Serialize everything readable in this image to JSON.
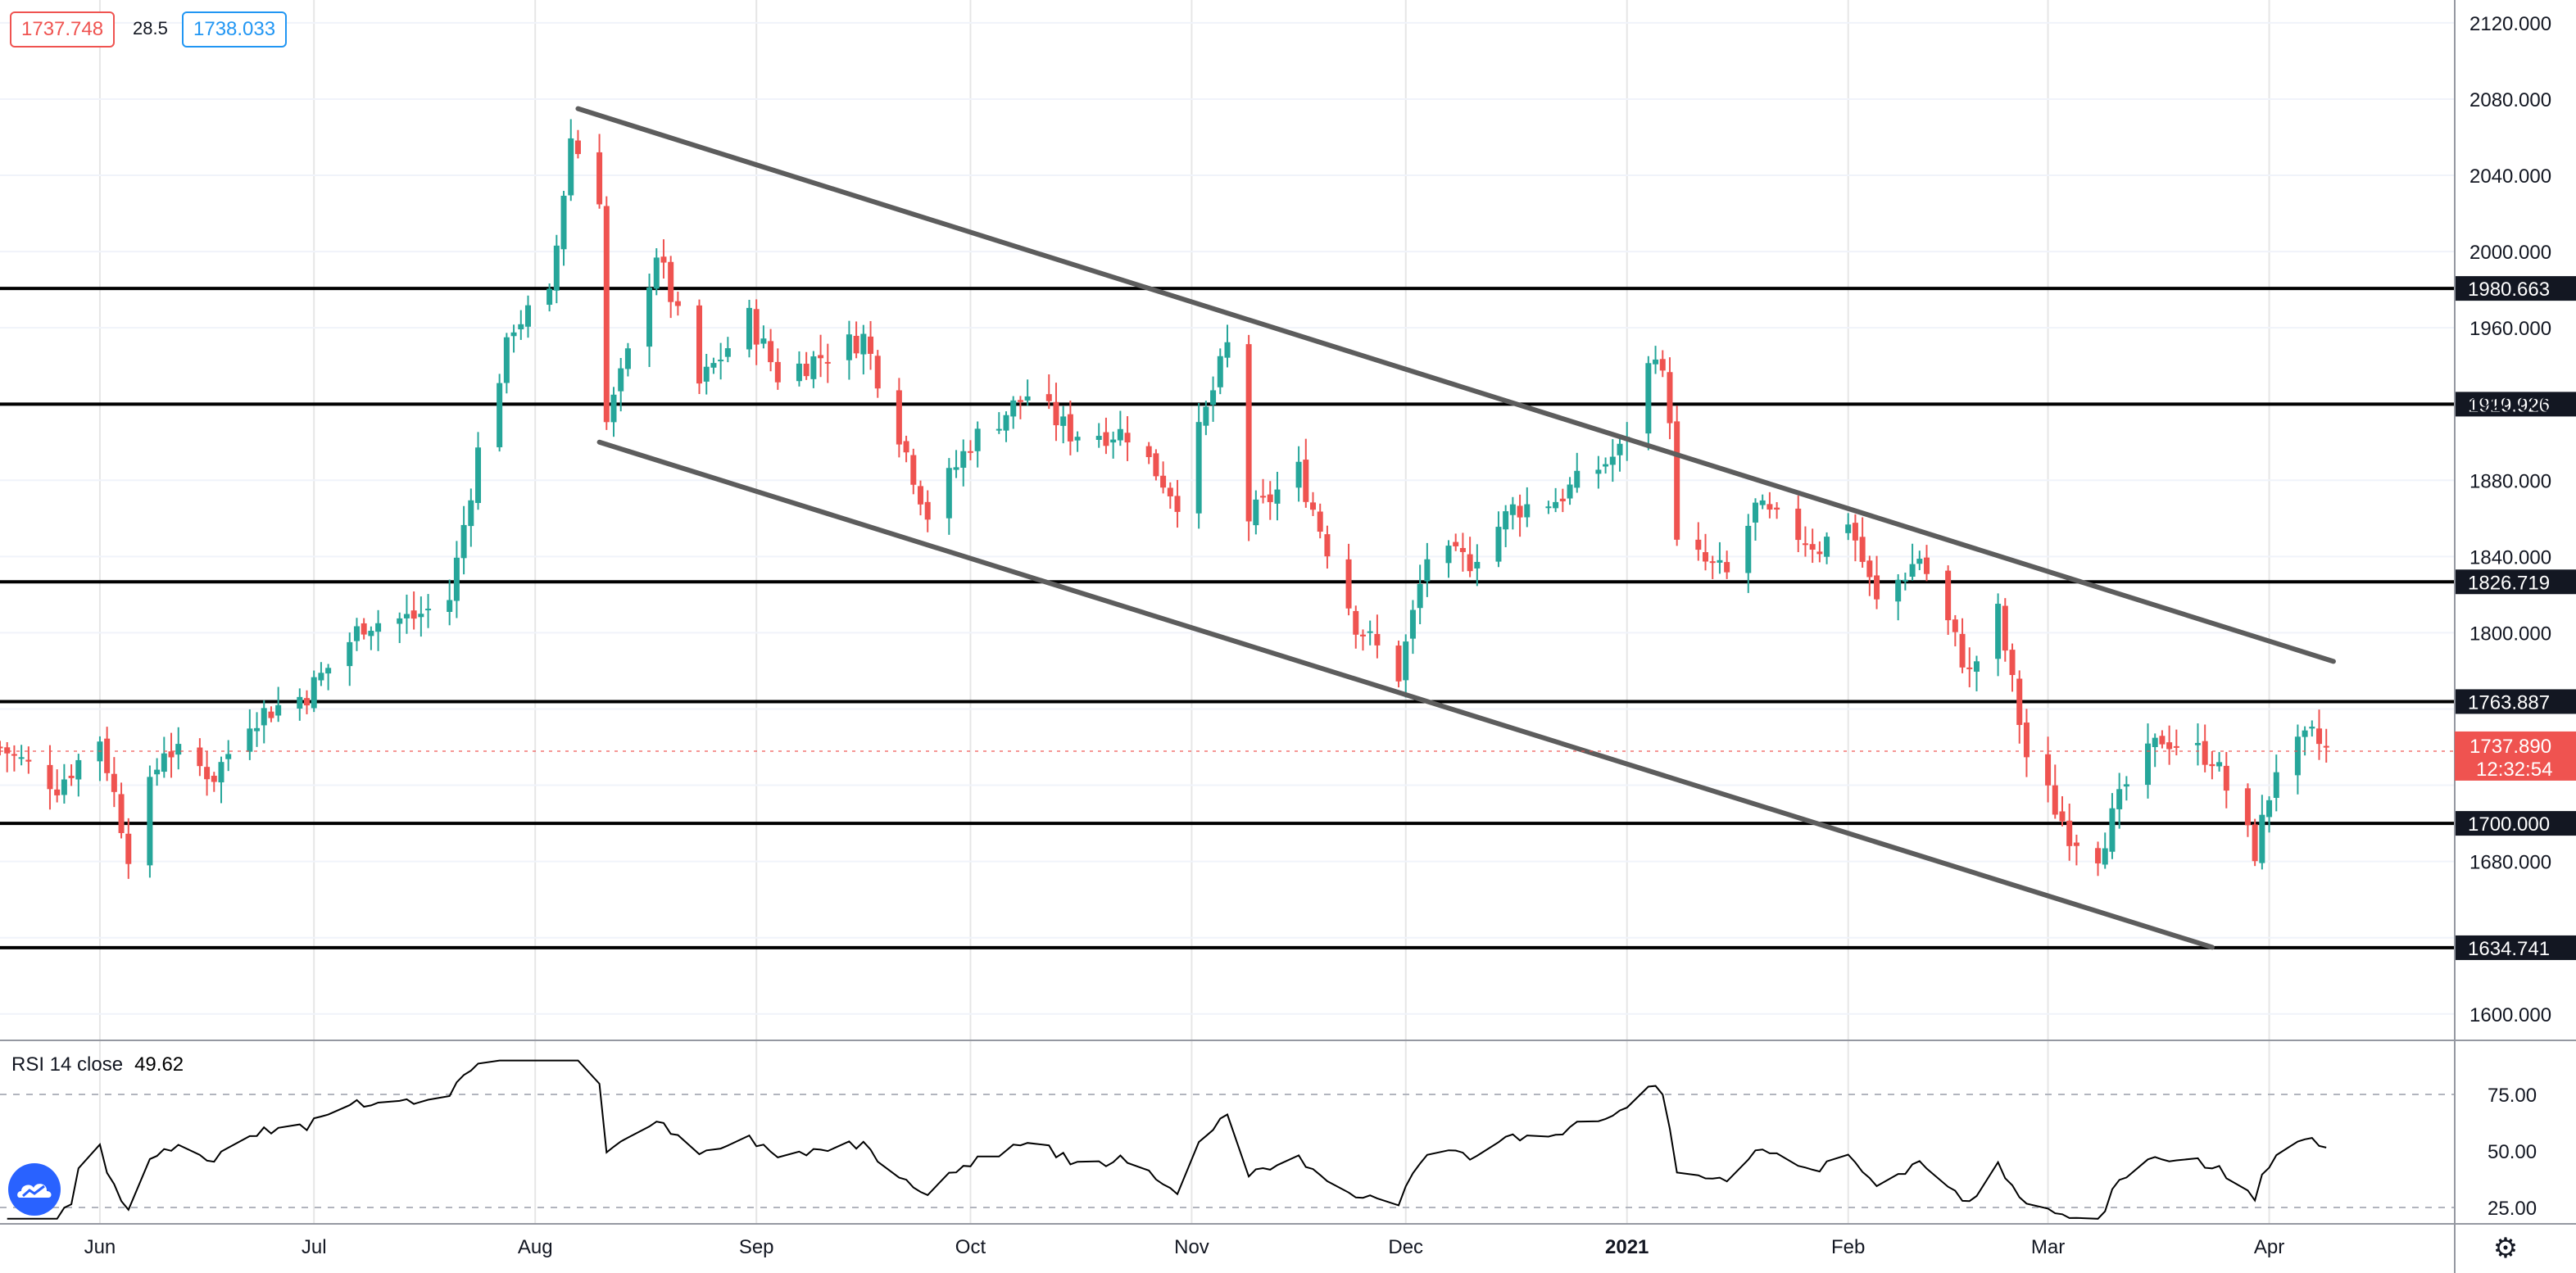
{
  "header": {
    "bid": "1737.748",
    "spread": "28.5",
    "ask": "1738.033"
  },
  "rsi": {
    "label": "RSI 14 close",
    "value": "49.62",
    "levels": [
      75,
      50,
      25
    ],
    "ticks": [
      "75.00",
      "50.00",
      "25.00"
    ]
  },
  "colors": {
    "up": "#26a69a",
    "down": "#ef5350",
    "grid": "#e6e6e6",
    "level_line": "#000000",
    "channel": "#5d5d5d",
    "bid": "#ef5350",
    "ask": "#2196f3"
  },
  "icons": {
    "logo": "tradingview-cloud-icon",
    "settings": "gear-icon"
  },
  "chart_data": {
    "type": "candlestick",
    "ylim": [
      1587,
      2132
    ],
    "y_ticks": [
      2120,
      2080,
      2040,
      2000,
      1960,
      1920,
      1880,
      1840,
      1800,
      1760,
      1720,
      1680,
      1640,
      1600
    ],
    "y_tick_labels": [
      "2120.000",
      "2080.000",
      "2040.000",
      "2000.000",
      "1960.000",
      "1920.000",
      "1880.000",
      "1840.000",
      "1800.000",
      "1760.000",
      "1720.000",
      "1680.000",
      "1640.000",
      "1600.000"
    ],
    "x_labels": [
      {
        "label": "Jun",
        "x": "2020-06-01"
      },
      {
        "label": "Jul",
        "x": "2020-07-01"
      },
      {
        "label": "Aug",
        "x": "2020-08-01"
      },
      {
        "label": "Sep",
        "x": "2020-09-01"
      },
      {
        "label": "Oct",
        "x": "2020-10-01"
      },
      {
        "label": "Nov",
        "x": "2020-11-01"
      },
      {
        "label": "Dec",
        "x": "2020-12-01"
      },
      {
        "label": "2021",
        "x": "2021-01-01"
      },
      {
        "label": "Feb",
        "x": "2021-02-01"
      },
      {
        "label": "Mar",
        "x": "2021-03-01"
      },
      {
        "label": "Apr",
        "x": "2021-04-01"
      }
    ],
    "x_range": [
      "2020-05-18",
      "2021-04-27"
    ],
    "horizontal_levels": [
      {
        "label": "1980.663",
        "value": 1980.663
      },
      {
        "label": "1919.926",
        "value": 1919.926
      },
      {
        "label": "1826.719",
        "value": 1826.719
      },
      {
        "label": "1763.887",
        "value": 1763.887
      },
      {
        "label": "1700.000",
        "value": 1700.0
      },
      {
        "label": "1634.741",
        "value": 1634.741
      }
    ],
    "channel_lines": [
      {
        "from": {
          "x": "2020-08-07",
          "y": 2075
        },
        "to": {
          "x": "2021-04-10",
          "y": 1785
        }
      },
      {
        "from": {
          "x": "2020-08-10",
          "y": 1900
        },
        "to": {
          "x": "2021-03-24",
          "y": 1635
        }
      }
    ],
    "current_price": {
      "label": "1737.890",
      "value": 1737.89,
      "countdown": "12:32:54"
    },
    "anchors": [
      [
        "2020-05-18",
        1740
      ],
      [
        "2020-05-26",
        1720
      ],
      [
        "2020-06-01",
        1745
      ],
      [
        "2020-06-05",
        1685
      ],
      [
        "2020-06-10",
        1740
      ],
      [
        "2020-06-17",
        1725
      ],
      [
        "2020-06-22",
        1755
      ],
      [
        "2020-06-30",
        1768
      ],
      [
        "2020-07-08",
        1805
      ],
      [
        "2020-07-15",
        1808
      ],
      [
        "2020-07-20",
        1818
      ],
      [
        "2020-07-24",
        1895
      ],
      [
        "2020-07-29",
        1962
      ],
      [
        "2020-08-03",
        1975
      ],
      [
        "2020-08-06",
        2060
      ],
      [
        "2020-08-10",
        2030
      ],
      [
        "2020-08-11",
        1910
      ],
      [
        "2020-08-14",
        1945
      ],
      [
        "2020-08-18",
        2000
      ],
      [
        "2020-08-24",
        1930
      ],
      [
        "2020-08-31",
        1965
      ],
      [
        "2020-09-04",
        1935
      ],
      [
        "2020-09-10",
        1945
      ],
      [
        "2020-09-16",
        1955
      ],
      [
        "2020-09-21",
        1905
      ],
      [
        "2020-09-25",
        1862
      ],
      [
        "2020-10-01",
        1900
      ],
      [
        "2020-10-09",
        1925
      ],
      [
        "2020-10-15",
        1905
      ],
      [
        "2020-10-23",
        1905
      ],
      [
        "2020-10-30",
        1870
      ],
      [
        "2020-11-06",
        1950
      ],
      [
        "2020-11-09",
        1860
      ],
      [
        "2020-11-16",
        1885
      ],
      [
        "2020-11-24",
        1805
      ],
      [
        "2020-11-30",
        1778
      ],
      [
        "2020-12-04",
        1840
      ],
      [
        "2020-12-10",
        1838
      ],
      [
        "2020-12-16",
        1865
      ],
      [
        "2020-12-22",
        1870
      ],
      [
        "2020-12-31",
        1895
      ],
      [
        "2021-01-05",
        1950
      ],
      [
        "2021-01-07",
        1915
      ],
      [
        "2021-01-08",
        1845
      ],
      [
        "2021-01-15",
        1830
      ],
      [
        "2021-01-19",
        1865
      ],
      [
        "2021-01-28",
        1845
      ],
      [
        "2021-02-01",
        1860
      ],
      [
        "2021-02-05",
        1815
      ],
      [
        "2021-02-11",
        1840
      ],
      [
        "2021-02-18",
        1778
      ],
      [
        "2021-02-22",
        1810
      ],
      [
        "2021-02-26",
        1735
      ],
      [
        "2021-03-04",
        1695
      ],
      [
        "2021-03-08",
        1685
      ],
      [
        "2021-03-12",
        1720
      ],
      [
        "2021-03-17",
        1745
      ],
      [
        "2021-03-24",
        1735
      ],
      [
        "2021-03-30",
        1685
      ],
      [
        "2021-04-02",
        1730
      ],
      [
        "2021-04-07",
        1745
      ],
      [
        "2021-04-09",
        1738
      ]
    ]
  }
}
